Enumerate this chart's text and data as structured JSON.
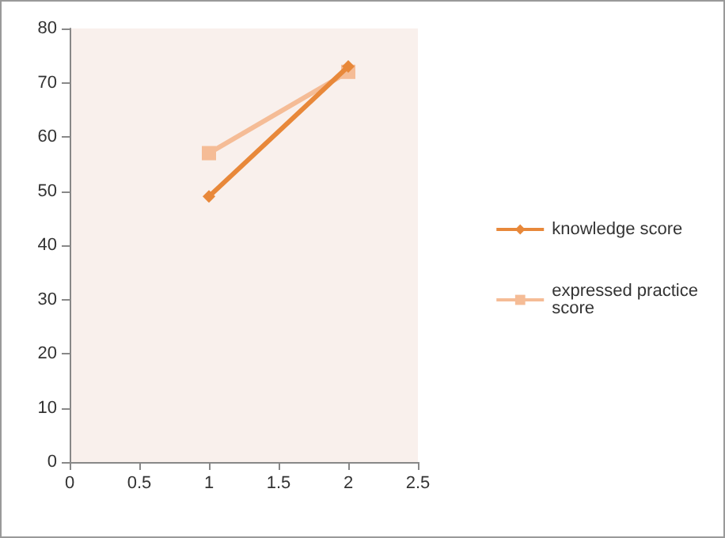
{
  "chart_data": {
    "type": "line",
    "x": [
      1,
      2
    ],
    "series": [
      {
        "name": "knowledge score",
        "color": "#e8883a",
        "values": [
          49,
          73
        ],
        "marker": "diamond"
      },
      {
        "name": "expressed practice score",
        "color": "#f5bc96",
        "values": [
          57,
          72
        ],
        "marker": "square"
      }
    ],
    "xlim": [
      0,
      2.5
    ],
    "xticks": [
      0,
      0.5,
      1,
      1.5,
      2,
      2.5
    ],
    "ylim": [
      0,
      80
    ],
    "yticks": [
      0,
      10,
      20,
      30,
      40,
      50,
      60,
      70,
      80
    ],
    "grid": false,
    "legend": "right"
  }
}
